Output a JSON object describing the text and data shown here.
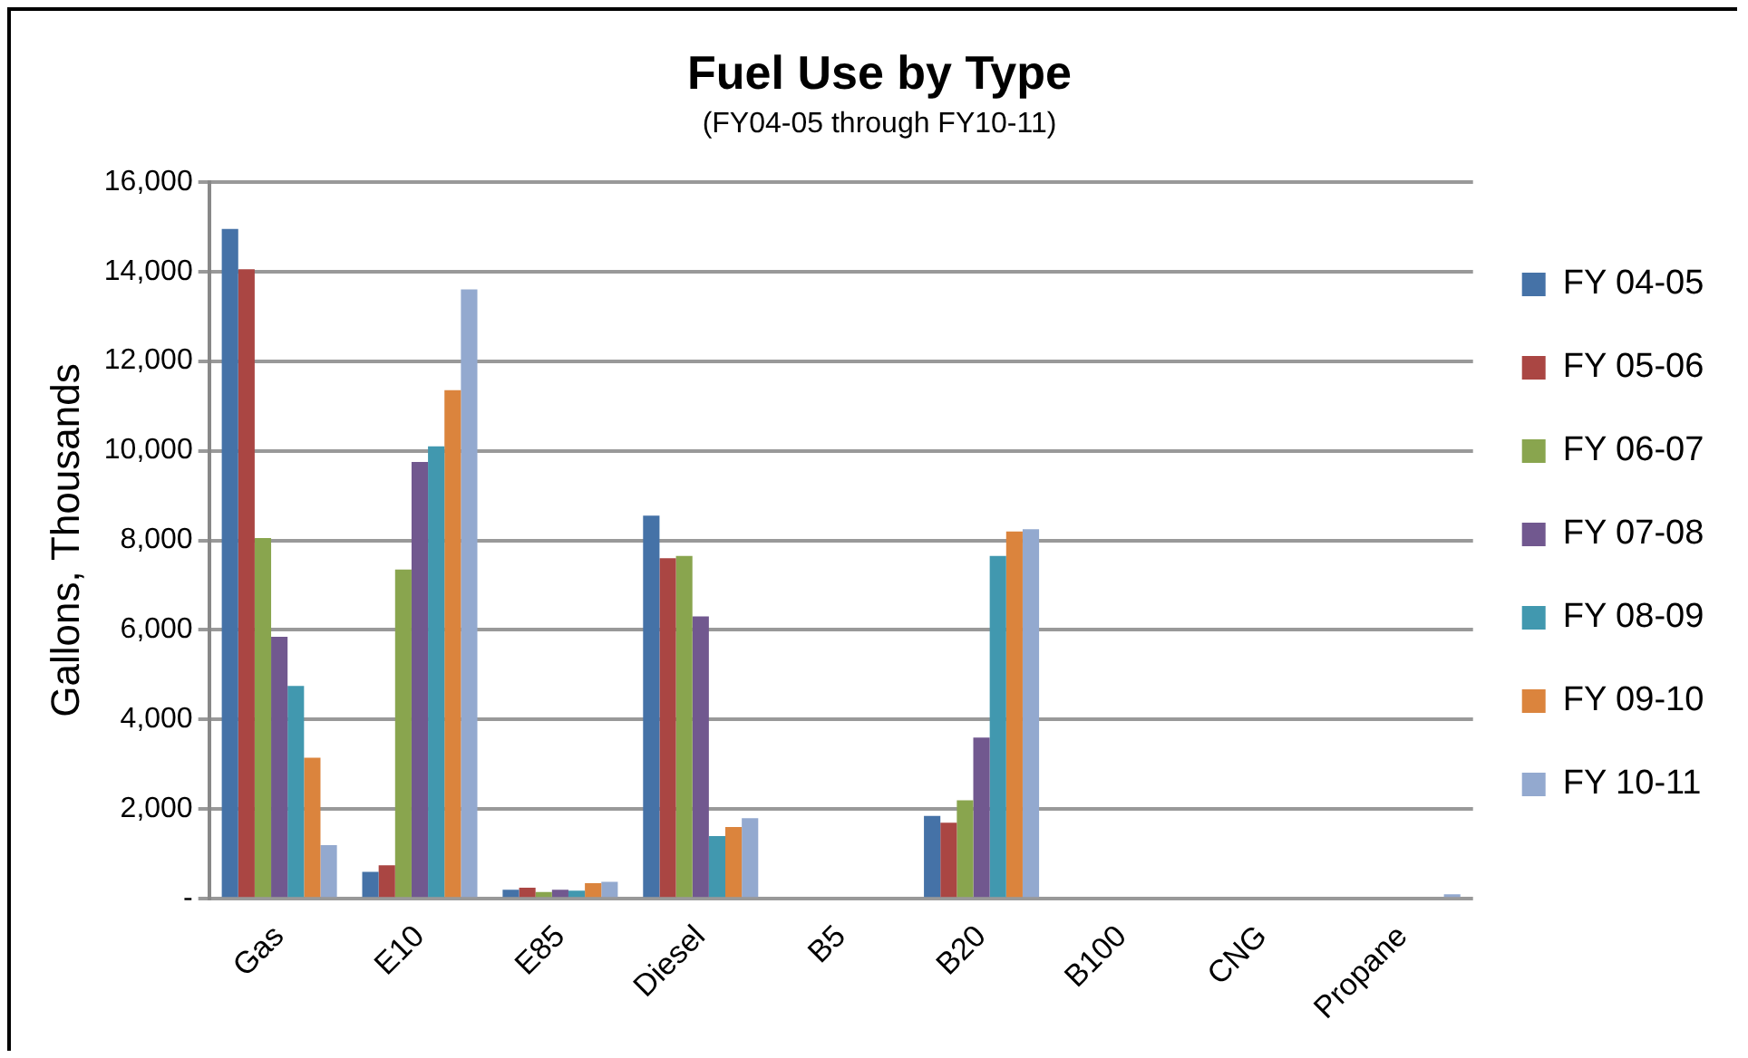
{
  "chart_data": {
    "type": "bar",
    "title": "Fuel Use by Type",
    "subtitle": "(FY04-05 through FY10-11)",
    "ylabel": "Gallons, Thousands",
    "categories": [
      "Gas",
      "E10",
      "E85",
      "Diesel",
      "B5",
      "B20",
      "B100",
      "CNG",
      "Propane"
    ],
    "series": [
      {
        "name": "FY 04-05",
        "color": "#4572a7",
        "values": [
          14950,
          600,
          200,
          8550,
          0,
          1850,
          0,
          0,
          0
        ]
      },
      {
        "name": "FY 05-06",
        "color": "#aa4643",
        "values": [
          14050,
          750,
          250,
          7600,
          0,
          1700,
          0,
          0,
          0
        ]
      },
      {
        "name": "FY 06-07",
        "color": "#89a54e",
        "values": [
          8050,
          7350,
          150,
          7650,
          0,
          2200,
          0,
          0,
          0
        ]
      },
      {
        "name": "FY 07-08",
        "color": "#71588f",
        "values": [
          5850,
          9750,
          200,
          6300,
          0,
          3600,
          0,
          0,
          0
        ]
      },
      {
        "name": "FY 08-09",
        "color": "#4198af",
        "values": [
          4750,
          10100,
          180,
          1400,
          0,
          7650,
          0,
          0,
          0
        ]
      },
      {
        "name": "FY 09-10",
        "color": "#db843d",
        "values": [
          3150,
          11350,
          350,
          1600,
          0,
          8200,
          0,
          0,
          0
        ]
      },
      {
        "name": "FY 10-11",
        "color": "#93a9cf",
        "values": [
          1200,
          13600,
          380,
          1800,
          0,
          8250,
          0,
          0,
          100
        ]
      }
    ],
    "ylim": [
      0,
      16000
    ],
    "yticks": [
      {
        "value": 0,
        "label": "-"
      },
      {
        "value": 2000,
        "label": "2,000"
      },
      {
        "value": 4000,
        "label": "4,000"
      },
      {
        "value": 6000,
        "label": "6,000"
      },
      {
        "value": 8000,
        "label": "8,000"
      },
      {
        "value": 10000,
        "label": "10,000"
      },
      {
        "value": 12000,
        "label": "12,000"
      },
      {
        "value": 14000,
        "label": "14,000"
      },
      {
        "value": 16000,
        "label": "16,000"
      }
    ],
    "grid": "y",
    "legend": "right"
  }
}
